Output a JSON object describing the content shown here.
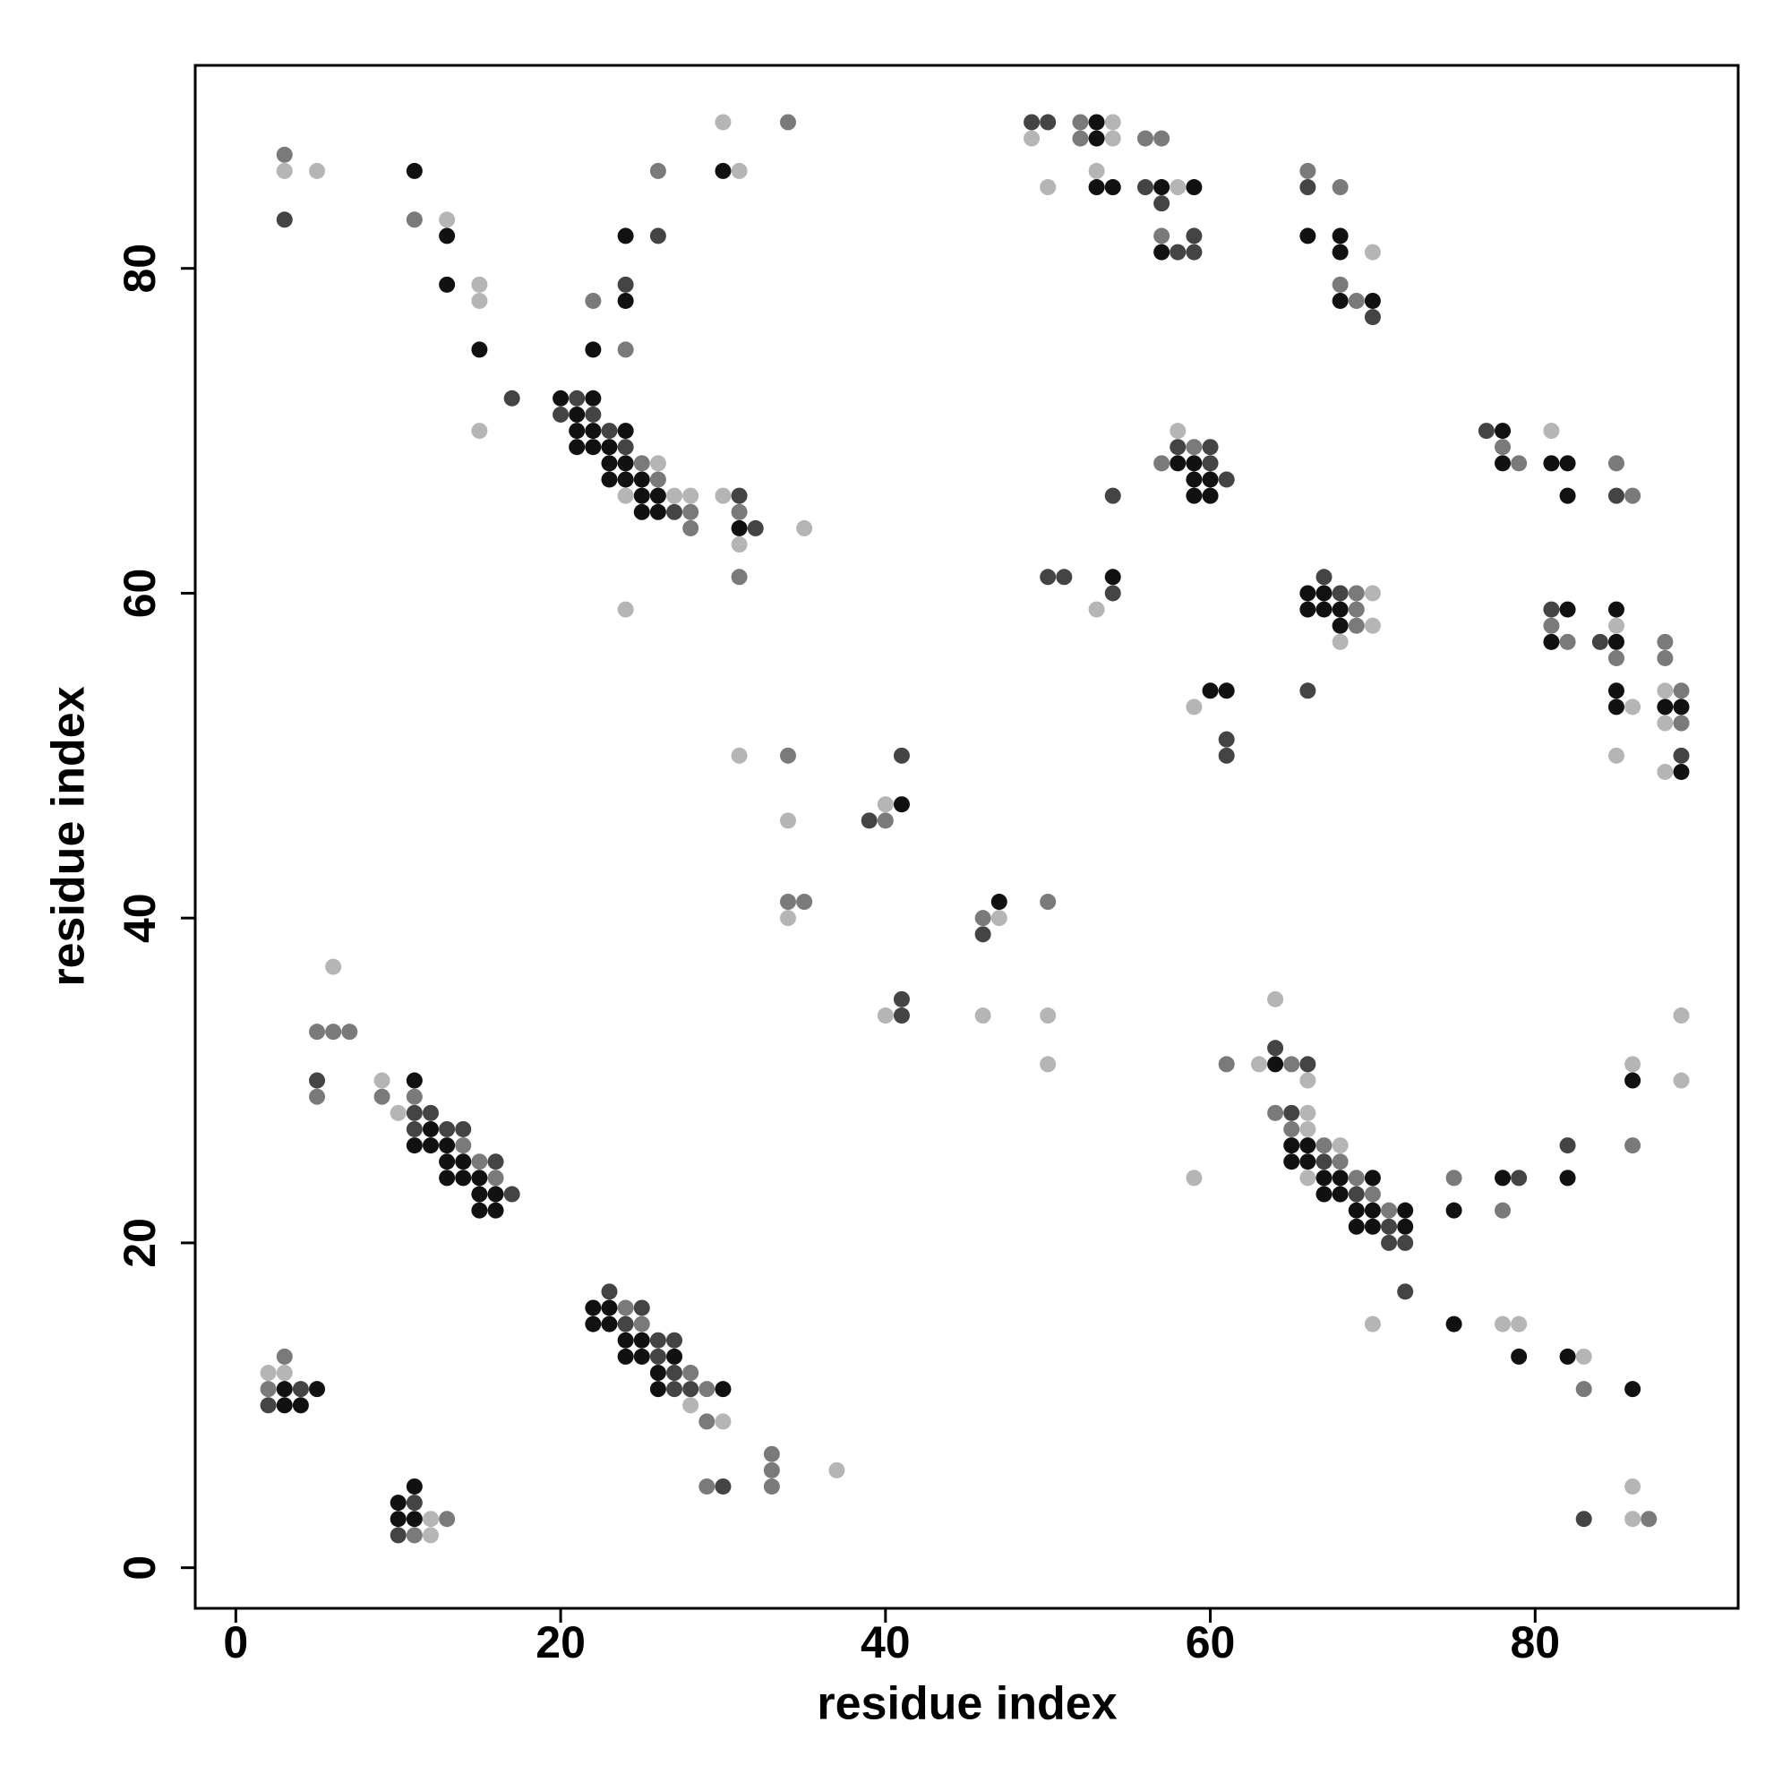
{
  "chart_data": {
    "type": "scatter",
    "xlabel": "residue index",
    "ylabel": "residue index",
    "xlim": [
      -2.5,
      92.5
    ],
    "ylim": [
      -2.5,
      92.5
    ],
    "xticks": [
      0,
      20,
      40,
      60,
      80
    ],
    "yticks": [
      0,
      20,
      40,
      60,
      80
    ],
    "series": [
      {
        "color": "#111111",
        "x": [
          53,
          53,
          11,
          30,
          53,
          54,
          57,
          59,
          13,
          24,
          66,
          68,
          57,
          68,
          13,
          24,
          68,
          70,
          15,
          22,
          20,
          22,
          21,
          21,
          22,
          24,
          78,
          21,
          22,
          23,
          23,
          24,
          58,
          59,
          78,
          81,
          82,
          23,
          24,
          25,
          59,
          60,
          25,
          26,
          59,
          60,
          82,
          25,
          26,
          31,
          54,
          66,
          67,
          66,
          67,
          68,
          82,
          85,
          68,
          81,
          85,
          60,
          61,
          85,
          85,
          88,
          89,
          89,
          41,
          47,
          64,
          11,
          86,
          12,
          11,
          12,
          13,
          65,
          66,
          13,
          14,
          65,
          66,
          13,
          14,
          15,
          67,
          68,
          70,
          78,
          82,
          15,
          16,
          67,
          68,
          15,
          16,
          69,
          70,
          72,
          75,
          69,
          70,
          72,
          22,
          23,
          22,
          23,
          75,
          24,
          25,
          24,
          25,
          27,
          79,
          82,
          26,
          3,
          5,
          26,
          30,
          86,
          3,
          4,
          11,
          10,
          10,
          11
        ],
        "y": [
          89,
          88,
          86,
          86,
          85,
          85,
          85,
          85,
          82,
          82,
          82,
          82,
          81,
          81,
          79,
          78,
          78,
          78,
          75,
          75,
          72,
          72,
          71,
          70,
          70,
          70,
          70,
          69,
          69,
          69,
          68,
          68,
          68,
          68,
          68,
          68,
          68,
          67,
          67,
          67,
          67,
          67,
          66,
          66,
          66,
          66,
          66,
          65,
          65,
          64,
          61,
          60,
          60,
          59,
          59,
          59,
          59,
          59,
          58,
          57,
          57,
          54,
          54,
          54,
          53,
          53,
          53,
          49,
          47,
          41,
          31,
          30,
          30,
          27,
          26,
          26,
          26,
          26,
          26,
          25,
          25,
          25,
          25,
          24,
          24,
          24,
          24,
          24,
          24,
          24,
          24,
          23,
          23,
          23,
          23,
          22,
          22,
          22,
          22,
          22,
          22,
          21,
          21,
          21,
          16,
          16,
          15,
          15,
          15,
          14,
          14,
          13,
          13,
          13,
          13,
          13,
          12,
          11,
          11,
          11,
          11,
          11,
          10,
          10,
          5,
          4,
          3,
          3
        ]
      },
      {
        "color": "#444444",
        "x": [
          49,
          50,
          56,
          66,
          57,
          3,
          26,
          59,
          58,
          59,
          24,
          70,
          17,
          21,
          20,
          22,
          23,
          77,
          24,
          58,
          60,
          60,
          61,
          31,
          54,
          85,
          27,
          32,
          50,
          51,
          67,
          54,
          68,
          81,
          84,
          66,
          61,
          41,
          61,
          89,
          39,
          46,
          41,
          41,
          64,
          66,
          5,
          11,
          12,
          65,
          11,
          13,
          14,
          82,
          16,
          67,
          79,
          17,
          69,
          71,
          71,
          72,
          23,
          72,
          25,
          24,
          26,
          27,
          26,
          27,
          4,
          27,
          28,
          2,
          30,
          11,
          83,
          10
        ],
        "y": [
          89,
          89,
          85,
          85,
          84,
          83,
          82,
          82,
          81,
          81,
          79,
          77,
          72,
          72,
          71,
          71,
          70,
          70,
          69,
          69,
          69,
          68,
          67,
          66,
          66,
          66,
          65,
          64,
          61,
          61,
          61,
          60,
          60,
          59,
          57,
          54,
          51,
          50,
          50,
          50,
          46,
          39,
          35,
          34,
          32,
          31,
          30,
          28,
          28,
          28,
          27,
          27,
          27,
          26,
          25,
          25,
          24,
          23,
          23,
          21,
          20,
          20,
          17,
          17,
          16,
          15,
          14,
          14,
          13,
          12,
          11,
          11,
          11,
          10,
          5,
          4,
          3,
          2
        ]
      },
      {
        "color": "#7a7a7a",
        "x": [
          34,
          52,
          52,
          56,
          57,
          3,
          26,
          66,
          68,
          11,
          57,
          68,
          22,
          69,
          24,
          59,
          78,
          25,
          57,
          79,
          85,
          26,
          86,
          28,
          31,
          28,
          31,
          69,
          69,
          69,
          81,
          82,
          88,
          85,
          88,
          89,
          89,
          34,
          40,
          34,
          35,
          50,
          46,
          5,
          6,
          7,
          61,
          65,
          5,
          9,
          11,
          64,
          65,
          14,
          67,
          86,
          15,
          68,
          16,
          69,
          75,
          70,
          71,
          78,
          24,
          25,
          3,
          28,
          2,
          29,
          83,
          29,
          33,
          33,
          29,
          33,
          13,
          87,
          11
        ],
        "y": [
          89,
          89,
          88,
          88,
          88,
          87,
          86,
          86,
          85,
          83,
          82,
          79,
          78,
          78,
          75,
          69,
          69,
          68,
          68,
          68,
          68,
          67,
          66,
          65,
          65,
          64,
          61,
          60,
          59,
          58,
          58,
          57,
          57,
          56,
          56,
          54,
          52,
          50,
          46,
          41,
          41,
          41,
          40,
          33,
          33,
          33,
          31,
          31,
          29,
          29,
          29,
          28,
          27,
          26,
          26,
          26,
          25,
          25,
          24,
          24,
          24,
          23,
          22,
          22,
          16,
          15,
          13,
          12,
          11,
          11,
          11,
          9,
          7,
          6,
          5,
          5,
          3,
          3,
          2
        ]
      },
      {
        "color": "#b5b5b5",
        "x": [
          30,
          54,
          49,
          54,
          3,
          5,
          31,
          53,
          50,
          58,
          13,
          70,
          15,
          15,
          15,
          58,
          81,
          26,
          24,
          27,
          28,
          30,
          35,
          31,
          70,
          24,
          53,
          70,
          85,
          68,
          88,
          59,
          86,
          88,
          31,
          85,
          88,
          40,
          34,
          34,
          47,
          6,
          64,
          40,
          46,
          50,
          89,
          50,
          63,
          86,
          9,
          66,
          89,
          10,
          66,
          66,
          68,
          59,
          66,
          70,
          78,
          79,
          83,
          2,
          3,
          28,
          30,
          37,
          86,
          12,
          86,
          12
        ],
        "y": [
          89,
          89,
          88,
          88,
          86,
          86,
          86,
          86,
          85,
          85,
          83,
          81,
          79,
          78,
          70,
          70,
          70,
          68,
          66,
          66,
          66,
          66,
          64,
          63,
          60,
          59,
          59,
          58,
          58,
          57,
          54,
          53,
          53,
          52,
          50,
          50,
          49,
          47,
          46,
          40,
          40,
          37,
          35,
          34,
          34,
          34,
          34,
          31,
          31,
          31,
          30,
          30,
          30,
          28,
          28,
          27,
          26,
          24,
          24,
          15,
          15,
          15,
          13,
          12,
          12,
          10,
          9,
          6,
          5,
          3,
          3,
          2
        ]
      }
    ]
  }
}
